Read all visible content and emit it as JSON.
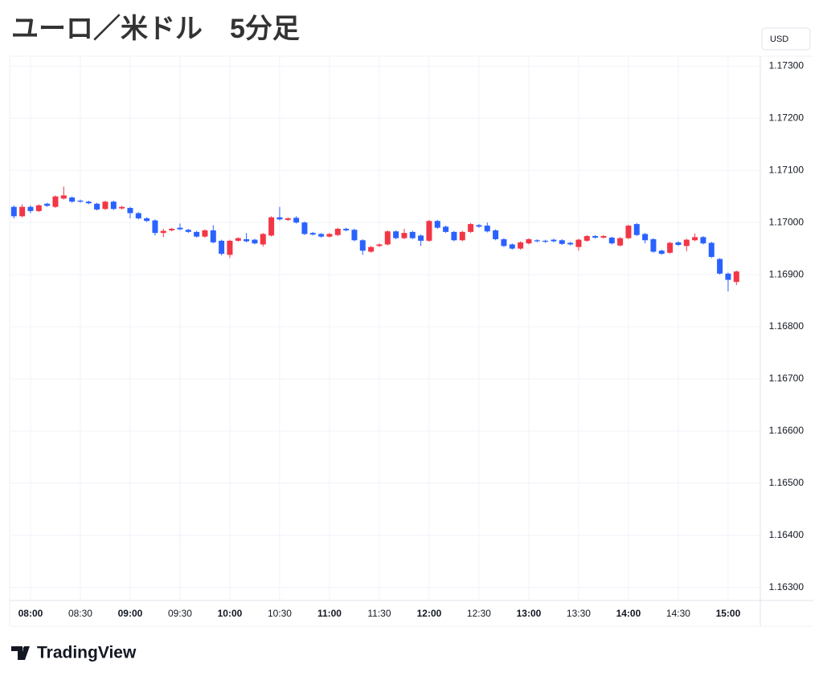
{
  "chart_data": {
    "type": "candlestick",
    "title": "ユーロ／米ドル　5分足",
    "currency": "USD",
    "categories": [
      null,
      null,
      "08:00",
      null,
      null,
      null,
      null,
      null,
      "08:30",
      null,
      null,
      null,
      null,
      null,
      "09:00",
      null,
      null,
      null,
      null,
      null,
      "09:30",
      null,
      null,
      null,
      null,
      null,
      "10:00",
      null,
      null,
      null,
      null,
      null,
      "10:30",
      null,
      null,
      null,
      null,
      null,
      "11:00",
      null,
      null,
      null,
      null,
      null,
      "11:30",
      null,
      null,
      null,
      null,
      null,
      "12:00",
      null,
      null,
      null,
      null,
      null,
      "12:30",
      null,
      null,
      null,
      null,
      null,
      "13:00",
      null,
      null,
      null,
      null,
      null,
      "13:30",
      null,
      null,
      null,
      null,
      null,
      "14:00",
      null,
      null,
      null,
      null,
      null,
      "14:30",
      null,
      null,
      null,
      null,
      null,
      "15:00",
      null
    ],
    "open": [
      1.1703,
      1.17012,
      1.1703,
      1.17022,
      1.17036,
      1.1703,
      1.17046,
      1.17048,
      1.17042,
      1.1704,
      1.17036,
      1.17026,
      1.1704,
      1.17027,
      1.17028,
      1.17018,
      1.17008,
      1.17004,
      1.1698,
      1.16985,
      1.1699,
      1.16986,
      1.16982,
      1.16973,
      1.16985,
      1.16965,
      1.16938,
      1.16965,
      1.16968,
      1.16967,
      1.16958,
      1.16975,
      1.1701,
      1.17005,
      1.17009,
      1.17,
      1.1698,
      1.16978,
      1.16973,
      1.16976,
      1.16988,
      1.16986,
      1.16966,
      1.16944,
      1.16955,
      1.16958,
      1.16983,
      1.1697,
      1.16982,
      1.16975,
      1.16965,
      1.17003,
      1.16992,
      1.16982,
      1.16966,
      1.16982,
      1.16995,
      1.16994,
      1.16985,
      1.16968,
      1.16958,
      1.1695,
      1.1696,
      1.16966,
      1.16965,
      1.16967,
      1.16966,
      1.16961,
      1.16953,
      1.16965,
      1.16974,
      1.16971,
      1.16971,
      1.16956,
      1.1697,
      1.16997,
      1.16978,
      1.16968,
      1.16946,
      1.16942,
      1.16962,
      1.16955,
      1.16966,
      1.16972,
      1.16961,
      1.1693,
      1.16902,
      1.16886
    ],
    "high": [
      1.17033,
      1.17035,
      1.17033,
      1.17035,
      1.17038,
      1.17052,
      1.17069,
      1.1705,
      1.17044,
      1.17042,
      1.17038,
      1.17042,
      1.17042,
      1.17032,
      1.1703,
      1.1702,
      1.1701,
      1.17006,
      1.16988,
      1.1699,
      1.16998,
      1.16988,
      1.16984,
      1.16987,
      1.16995,
      1.16967,
      1.16967,
      1.16972,
      1.1698,
      1.16969,
      1.1698,
      1.17012,
      1.1703,
      1.1701,
      1.17012,
      1.17002,
      1.16982,
      1.1698,
      1.1698,
      1.1699,
      1.1699,
      1.16988,
      1.16968,
      1.16955,
      1.1696,
      1.16985,
      1.16985,
      1.16988,
      1.16984,
      1.16977,
      1.17005,
      1.17005,
      1.16994,
      1.16984,
      1.16984,
      1.16999,
      1.16997,
      1.17,
      1.16987,
      1.1697,
      1.1696,
      1.16964,
      1.1697,
      1.16968,
      1.16967,
      1.16969,
      1.16968,
      1.16963,
      1.16969,
      1.16976,
      1.16976,
      1.16976,
      1.16973,
      1.16972,
      1.16996,
      1.16999,
      1.1698,
      1.1697,
      1.16948,
      1.16963,
      1.16964,
      1.16969,
      1.16979,
      1.16974,
      1.16963,
      1.16932,
      1.16904,
      1.16908
    ],
    "low": [
      1.17008,
      1.1701,
      1.17018,
      1.1702,
      1.1703,
      1.17028,
      1.17044,
      1.17038,
      1.17038,
      1.17035,
      1.17023,
      1.17024,
      1.17024,
      1.17025,
      1.17008,
      1.17006,
      1.17001,
      1.16975,
      1.16972,
      1.16983,
      1.16985,
      1.1698,
      1.16971,
      1.16971,
      1.1696,
      1.16937,
      1.16932,
      1.16963,
      1.16962,
      1.16958,
      1.16954,
      1.16973,
      1.17004,
      1.17003,
      1.16998,
      1.16976,
      1.16975,
      1.16971,
      1.16971,
      1.16974,
      1.16983,
      1.16964,
      1.16938,
      1.16942,
      1.16953,
      1.16956,
      1.16968,
      1.16968,
      1.16968,
      1.16955,
      1.16963,
      1.16988,
      1.1698,
      1.16964,
      1.16964,
      1.1698,
      1.1699,
      1.16981,
      1.16966,
      1.16953,
      1.16948,
      1.16948,
      1.16958,
      1.16962,
      1.16961,
      1.16962,
      1.16957,
      1.16956,
      1.16946,
      1.16963,
      1.16969,
      1.16969,
      1.16958,
      1.16954,
      1.16968,
      1.16974,
      1.1696,
      1.16942,
      1.16938,
      1.1694,
      1.16955,
      1.16945,
      1.16964,
      1.16958,
      1.16932,
      1.169,
      1.16868,
      1.1688
    ],
    "close": [
      1.17012,
      1.1703,
      1.17022,
      1.17033,
      1.17032,
      1.1705,
      1.17052,
      1.1704,
      1.1704,
      1.17037,
      1.17025,
      1.1704,
      1.17026,
      1.1703,
      1.17018,
      1.17008,
      1.17003,
      1.1698,
      1.16984,
      1.16988,
      1.16987,
      1.16982,
      1.16973,
      1.16985,
      1.16962,
      1.1694,
      1.16965,
      1.1697,
      1.16964,
      1.1696,
      1.16978,
      1.1701,
      1.17006,
      1.17008,
      1.17,
      1.16978,
      1.16977,
      1.16973,
      1.16978,
      1.16988,
      1.16985,
      1.16966,
      1.16946,
      1.16953,
      1.16958,
      1.16983,
      1.1697,
      1.1698,
      1.1697,
      1.16965,
      1.17003,
      1.1699,
      1.16982,
      1.16966,
      1.16982,
      1.16997,
      1.16992,
      1.16983,
      1.16968,
      1.16955,
      1.1695,
      1.16962,
      1.16968,
      1.16964,
      1.16963,
      1.16964,
      1.16959,
      1.16958,
      1.16967,
      1.16974,
      1.16971,
      1.16974,
      1.1696,
      1.1697,
      1.16994,
      1.16976,
      1.16966,
      1.16944,
      1.1694,
      1.16961,
      1.16957,
      1.16967,
      1.16972,
      1.1696,
      1.16934,
      1.16902,
      1.1689,
      1.16906
    ],
    "up_color": "#f23645",
    "down_color": "#2962ff",
    "ylim": [
      1.16275,
      1.17319
    ],
    "yticks": [
      {
        "value": 1.163,
        "label": "1.16300"
      },
      {
        "value": 1.164,
        "label": "1.16400"
      },
      {
        "value": 1.165,
        "label": "1.16500"
      },
      {
        "value": 1.166,
        "label": "1.16600"
      },
      {
        "value": 1.167,
        "label": "1.16700"
      },
      {
        "value": 1.168,
        "label": "1.16800"
      },
      {
        "value": 1.169,
        "label": "1.16900"
      },
      {
        "value": 1.17,
        "label": "1.17000"
      },
      {
        "value": 1.171,
        "label": "1.17100"
      },
      {
        "value": 1.172,
        "label": "1.17200"
      },
      {
        "value": 1.173,
        "label": "1.17300"
      }
    ],
    "grid": true
  },
  "logo": "TradingView"
}
